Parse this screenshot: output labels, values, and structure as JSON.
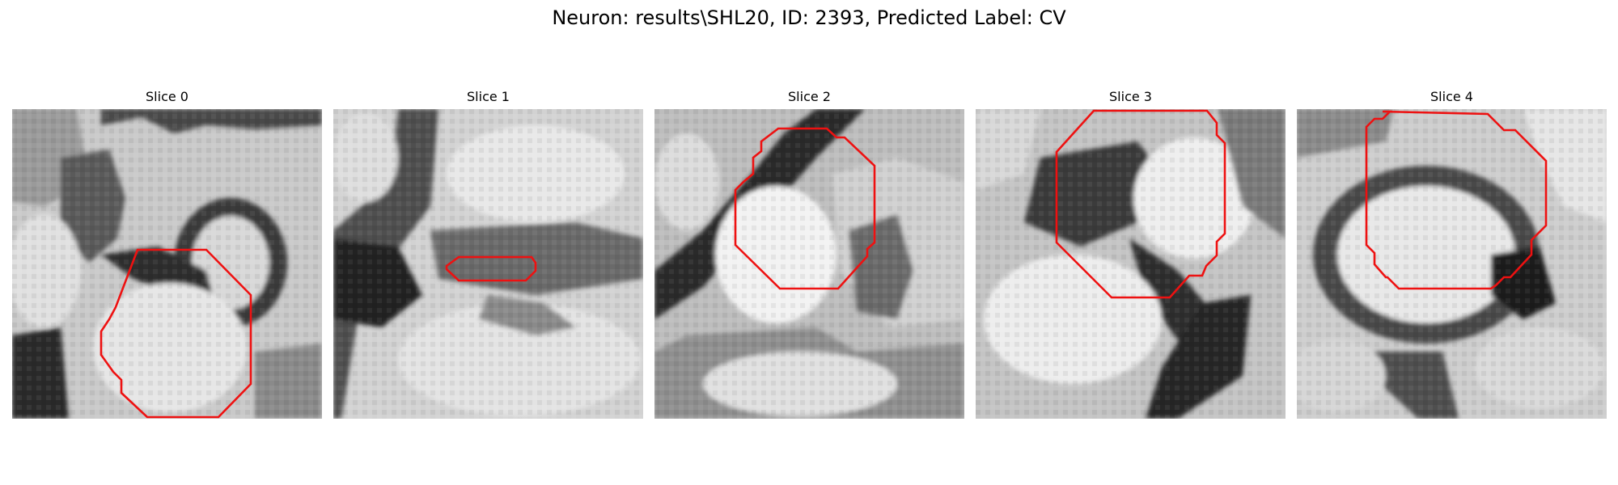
{
  "figure": {
    "title": "Neuron: results\\SHL20, ID: 2393, Predicted Label: CV",
    "contour_color": "#ee1111"
  },
  "panels": [
    {
      "title": "Slice 0"
    },
    {
      "title": "Slice 1"
    },
    {
      "title": "Slice 2"
    },
    {
      "title": "Slice 3"
    },
    {
      "title": "Slice 4"
    }
  ]
}
